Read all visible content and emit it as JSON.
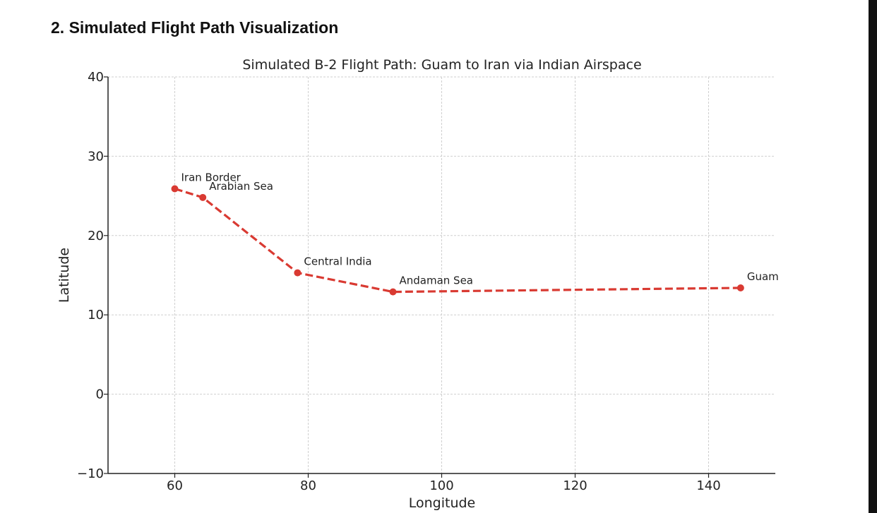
{
  "heading": "2. Simulated Flight Path Visualization",
  "chart_data": {
    "type": "line",
    "title": "Simulated B-2 Flight Path: Guam to Iran via Indian Airspace",
    "xlabel": "Longitude",
    "ylabel": "Latitude",
    "xlim": [
      50,
      150
    ],
    "ylim": [
      -10,
      40
    ],
    "xticks": [
      60,
      80,
      100,
      120,
      140
    ],
    "yticks": [
      -10,
      0,
      10,
      20,
      30,
      40
    ],
    "grid": true,
    "color": "#d93a32",
    "line_style": "dashed",
    "points": [
      {
        "label": "Guam",
        "x": 144.8,
        "y": 13.4
      },
      {
        "label": "Andaman Sea",
        "x": 92.7,
        "y": 12.9
      },
      {
        "label": "Central India",
        "x": 78.4,
        "y": 15.3
      },
      {
        "label": "Arabian Sea",
        "x": 64.2,
        "y": 24.8
      },
      {
        "label": "Iran Border",
        "x": 60.0,
        "y": 25.9
      }
    ]
  }
}
